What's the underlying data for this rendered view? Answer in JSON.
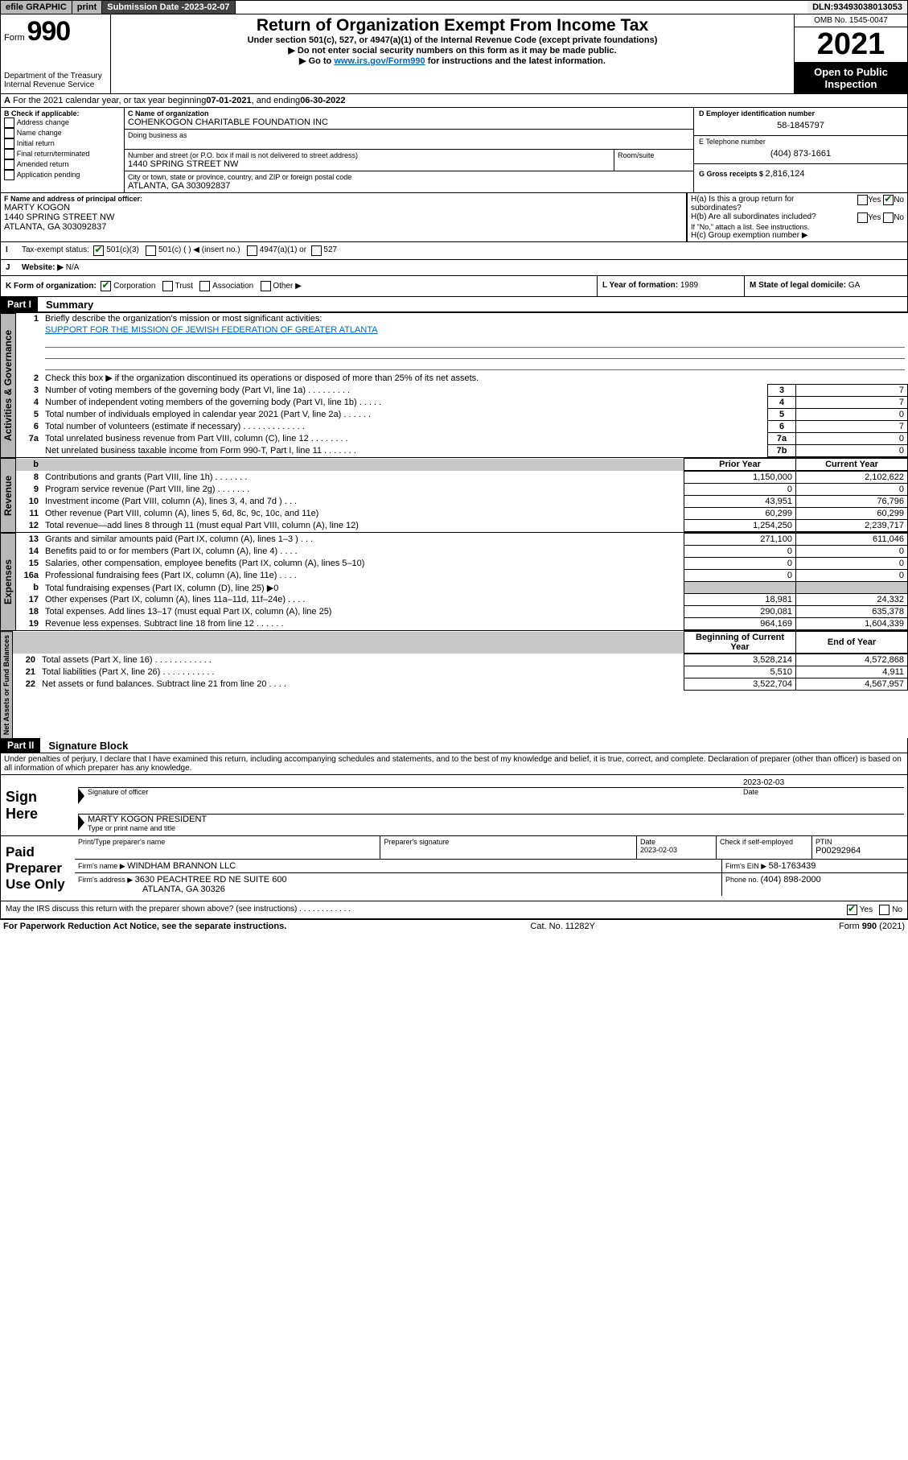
{
  "topbar": {
    "efile": "efile GRAPHIC",
    "print": "print",
    "subdate_label": "Submission Date - ",
    "subdate": "2023-02-07",
    "dln_label": "DLN: ",
    "dln": "93493038013053"
  },
  "header": {
    "form_word": "Form",
    "form_no": "990",
    "dept": "Department of the Treasury\nInternal Revenue Service",
    "title": "Return of Organization Exempt From Income Tax",
    "sub1": "Under section 501(c), 527, or 4947(a)(1) of the Internal Revenue Code (except private foundations)",
    "sub2": "▶ Do not enter social security numbers on this form as it may be made public.",
    "sub3_pre": "▶ Go to ",
    "sub3_link": "www.irs.gov/Form990",
    "sub3_post": " for instructions and the latest information.",
    "omb": "OMB No. 1545-0047",
    "year": "2021",
    "open": "Open to Public Inspection"
  },
  "A": {
    "text": "For the 2021 calendar year, or tax year beginning ",
    "begin": "07-01-2021",
    "mid": " , and ending ",
    "end": "06-30-2022"
  },
  "B": {
    "label": "B Check if applicable:",
    "opts": [
      "Address change",
      "Name change",
      "Initial return",
      "Final return/terminated",
      "Amended return",
      "Application pending"
    ]
  },
  "C": {
    "label": "C Name of organization",
    "name": "COHENKOGON CHARITABLE FOUNDATION INC",
    "dba_label": "Doing business as",
    "street_label": "Number and street (or P.O. box if mail is not delivered to street address)",
    "room_label": "Room/suite",
    "street": "1440 SPRING STREET NW",
    "city_label": "City or town, state or province, country, and ZIP or foreign postal code",
    "city": "ATLANTA, GA  303092837"
  },
  "D": {
    "label": "D Employer identification number",
    "val": "58-1845797"
  },
  "E": {
    "label": "E Telephone number",
    "val": "(404) 873-1661"
  },
  "G": {
    "label": "G Gross receipts $ ",
    "val": "2,816,124"
  },
  "F": {
    "label": "F Name and address of principal officer:",
    "name": "MARTY KOGON",
    "addr1": "1440 SPRING STREET NW",
    "addr2": "ATLANTA, GA  303092837"
  },
  "H": {
    "a": "H(a)  Is this a group return for subordinates?",
    "b": "H(b)  Are all subordinates included?",
    "b_note": "If \"No,\" attach a list. See instructions.",
    "c": "H(c)  Group exemption number ▶",
    "yes": "Yes",
    "no": "No"
  },
  "I": {
    "label": "Tax-exempt status:",
    "o1": "501(c)(3)",
    "o2": "501(c) (   ) ◀ (insert no.)",
    "o3": "4947(a)(1) or",
    "o4": "527"
  },
  "J": {
    "label": "Website: ▶",
    "val": "N/A"
  },
  "K": {
    "label": "K Form of organization:",
    "o1": "Corporation",
    "o2": "Trust",
    "o3": "Association",
    "o4": "Other ▶"
  },
  "L": {
    "label": "L Year of formation: ",
    "val": "1989"
  },
  "M": {
    "label": "M State of legal domicile: ",
    "val": "GA"
  },
  "part1": {
    "hdr": "Part I",
    "title": "Summary",
    "l1": "Briefly describe the organization's mission or most significant activities:",
    "mission": "SUPPORT FOR THE MISSION OF JEWISH FEDERATION OF GREATER ATLANTA",
    "l2": "Check this box ▶        if the organization discontinued its operations or disposed of more than 25% of its net assets.",
    "prior": "Prior Year",
    "current": "Current Year",
    "begin": "Beginning of Current Year",
    "end": "End of Year",
    "rows_gov": [
      {
        "n": "3",
        "d": "Number of voting members of the governing body (Part VI, line 1a)   .    .    .    .    .    .    .    .    .",
        "b": "3",
        "v": "7"
      },
      {
        "n": "4",
        "d": "Number of independent voting members of the governing body (Part VI, line 1b)    .    .    .    .    .",
        "b": "4",
        "v": "7"
      },
      {
        "n": "5",
        "d": "Total number of individuals employed in calendar year 2021 (Part V, line 2a)    .    .    .    .    .    .",
        "b": "5",
        "v": "0"
      },
      {
        "n": "6",
        "d": "Total number of volunteers (estimate if necessary)    .    .    .    .    .    .    .    .    .    .    .    .    .",
        "b": "6",
        "v": "7"
      },
      {
        "n": "7a",
        "d": "Total unrelated business revenue from Part VIII, column (C), line 12    .    .    .    .    .    .    .    .",
        "b": "7a",
        "v": "0"
      },
      {
        "n": "",
        "d": "Net unrelated business taxable income from Form 990-T, Part I, line 11    .    .    .    .    .    .    .",
        "b": "7b",
        "v": "0"
      }
    ],
    "rows_rev": [
      {
        "n": "8",
        "d": "Contributions and grants (Part VIII, line 1h)    .    .    .    .    .    .    .",
        "p": "1,150,000",
        "c": "2,102,622"
      },
      {
        "n": "9",
        "d": "Program service revenue (Part VIII, line 2g)    .    .    .    .    .    .    .",
        "p": "0",
        "c": "0"
      },
      {
        "n": "10",
        "d": "Investment income (Part VIII, column (A), lines 3, 4, and 7d )    .    .    .",
        "p": "43,951",
        "c": "76,796"
      },
      {
        "n": "11",
        "d": "Other revenue (Part VIII, column (A), lines 5, 6d, 8c, 9c, 10c, and 11e)",
        "p": "60,299",
        "c": "60,299"
      },
      {
        "n": "12",
        "d": "Total revenue—add lines 8 through 11 (must equal Part VIII, column (A), line 12)",
        "p": "1,254,250",
        "c": "2,239,717"
      }
    ],
    "rows_exp": [
      {
        "n": "13",
        "d": "Grants and similar amounts paid (Part IX, column (A), lines 1–3 )    .    .    .",
        "p": "271,100",
        "c": "611,046"
      },
      {
        "n": "14",
        "d": "Benefits paid to or for members (Part IX, column (A), line 4)    .    .    .    .",
        "p": "0",
        "c": "0"
      },
      {
        "n": "15",
        "d": "Salaries, other compensation, employee benefits (Part IX, column (A), lines 5–10)",
        "p": "0",
        "c": "0"
      },
      {
        "n": "16a",
        "d": "Professional fundraising fees (Part IX, column (A), line 11e)    .    .    .    .",
        "p": "0",
        "c": "0"
      },
      {
        "n": "b",
        "d": "Total fundraising expenses (Part IX, column (D), line 25) ▶0",
        "p": "",
        "c": "",
        "shade": true
      },
      {
        "n": "17",
        "d": "Other expenses (Part IX, column (A), lines 11a–11d, 11f–24e)    .    .    .    .",
        "p": "18,981",
        "c": "24,332"
      },
      {
        "n": "18",
        "d": "Total expenses. Add lines 13–17 (must equal Part IX, column (A), line 25)",
        "p": "290,081",
        "c": "635,378"
      },
      {
        "n": "19",
        "d": "Revenue less expenses. Subtract line 18 from line 12    .    .    .    .    .    .",
        "p": "964,169",
        "c": "1,604,339"
      }
    ],
    "rows_net": [
      {
        "n": "20",
        "d": "Total assets (Part X, line 16)    .    .    .    .    .    .    .    .    .    .    .    .",
        "p": "3,528,214",
        "c": "4,572,868"
      },
      {
        "n": "21",
        "d": "Total liabilities (Part X, line 26)    .    .    .    .    .    .    .    .    .    .    .",
        "p": "5,510",
        "c": "4,911"
      },
      {
        "n": "22",
        "d": "Net assets or fund balances. Subtract line 21 from line 20    .    .    .    .",
        "p": "3,522,704",
        "c": "4,567,957"
      }
    ]
  },
  "part2": {
    "hdr": "Part II",
    "title": "Signature Block",
    "decl": "Under penalties of perjury, I declare that I have examined this return, including accompanying schedules and statements, and to the best of my knowledge and belief, it is true, correct, and complete. Declaration of preparer (other than officer) is based on all information of which preparer has any knowledge.",
    "sign_here": "Sign Here",
    "sig_officer": "Signature of officer",
    "date_label": "Date",
    "sig_date": "2023-02-03",
    "officer_name": "MARTY KOGON  PRESIDENT",
    "type_name": "Type or print name and title",
    "paid": "Paid Preparer Use Only",
    "prep_name_label": "Print/Type preparer's name",
    "prep_sig_label": "Preparer's signature",
    "prep_date": "2023-02-03",
    "check_if": "Check        if self-employed",
    "ptin_label": "PTIN",
    "ptin": "P00292964",
    "firm_name_label": "Firm's name      ▶ ",
    "firm_name": "WINDHAM BRANNON LLC",
    "firm_ein_label": "Firm's EIN ▶ ",
    "firm_ein": "58-1763439",
    "firm_addr_label": "Firm's address ▶ ",
    "firm_addr": "3630 PEACHTREE RD NE SUITE 600",
    "firm_city": "ATLANTA, GA  30326",
    "phone_label": "Phone no. ",
    "phone": "(404) 898-2000",
    "may_irs": "May the IRS discuss this return with the preparer shown above? (see instructions)    .    .    .    .    .    .    .    .    .    .    .    .",
    "yes": "Yes",
    "no": "No"
  },
  "footer": {
    "left": "For Paperwork Reduction Act Notice, see the separate instructions.",
    "mid": "Cat. No. 11282Y",
    "right": "Form 990 (2021)"
  },
  "sidelabels": {
    "gov": "Activities & Governance",
    "rev": "Revenue",
    "exp": "Expenses",
    "net": "Net Assets or Fund Balances"
  }
}
